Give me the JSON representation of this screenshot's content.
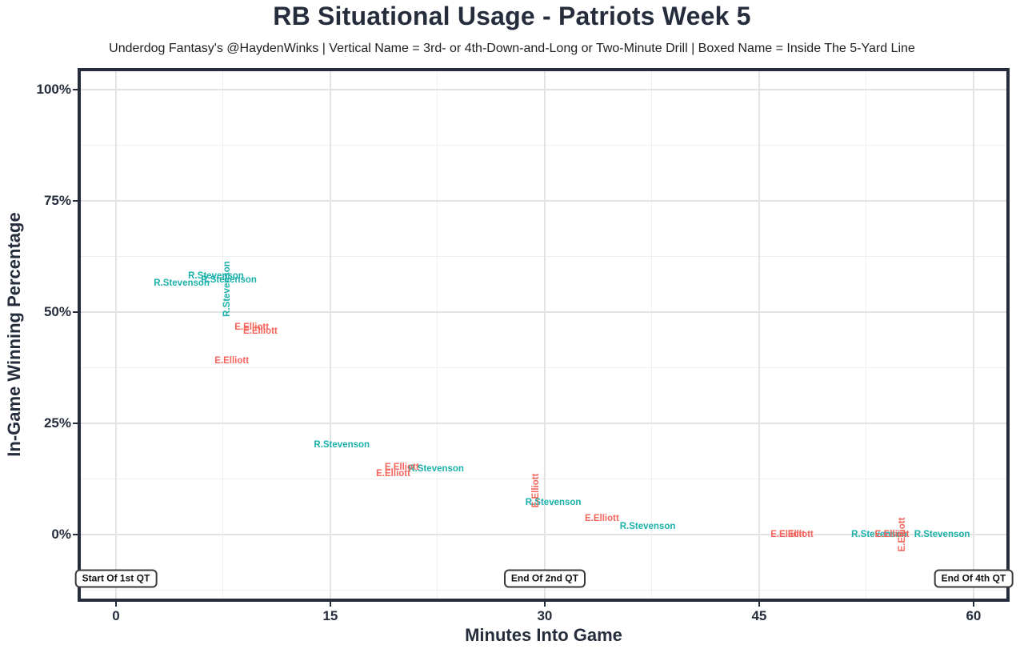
{
  "chart_data": {
    "type": "scatter",
    "point_style": "text-labels-only",
    "title": "RB Situational Usage - Patriots Week 5",
    "subtitle": "Underdog Fantasy's @HaydenWinks | Vertical Name = 3rd- or 4th-Down-and-Long or Two-Minute Drill | Boxed Name = Inside The 5-Yard Line",
    "xlabel": "Minutes Into Game",
    "ylabel": "In-Game Winning Percentage",
    "xlim": [
      -2.46,
      62.3
    ],
    "ylim": [
      -14.4,
      104.1
    ],
    "grid": true,
    "legend": "none",
    "x_ticks": [
      {
        "value": 0,
        "label": "0"
      },
      {
        "value": 15,
        "label": "15"
      },
      {
        "value": 30,
        "label": "30"
      },
      {
        "value": 45,
        "label": "45"
      },
      {
        "value": 60,
        "label": "60"
      }
    ],
    "y_ticks": [
      {
        "value": 0,
        "label": "0%"
      },
      {
        "value": 25,
        "label": "25%"
      },
      {
        "value": 50,
        "label": "50%"
      },
      {
        "value": 75,
        "label": "75%"
      },
      {
        "value": 100,
        "label": "100%"
      }
    ],
    "x_minor_gridlines": [
      7.5,
      22.5,
      37.5,
      52.5
    ],
    "y_minor_gridlines": [
      -12.5,
      12.5,
      37.5,
      62.5,
      87.5
    ],
    "series": [
      {
        "name": "R.Stevenson",
        "color": "#1bb1aa",
        "points": [
          {
            "x": 4.6,
            "y": 56.5
          },
          {
            "x": 7.0,
            "y": 58.1
          },
          {
            "x": 7.9,
            "y": 57.2
          },
          {
            "x": 7.8,
            "y": 55.2,
            "vertical": true
          },
          {
            "x": 15.8,
            "y": 20.1
          },
          {
            "x": 22.4,
            "y": 14.7
          },
          {
            "x": 30.6,
            "y": 7.2
          },
          {
            "x": 37.2,
            "y": 1.8
          },
          {
            "x": 53.4,
            "y": 0.0
          },
          {
            "x": 57.8,
            "y": 0.0
          }
        ]
      },
      {
        "name": "E.Elliott",
        "color": "#f4655c",
        "points": [
          {
            "x": 9.5,
            "y": 46.6
          },
          {
            "x": 10.1,
            "y": 45.7
          },
          {
            "x": 8.1,
            "y": 39.0
          },
          {
            "x": 20.0,
            "y": 15.1
          },
          {
            "x": 19.4,
            "y": 13.7
          },
          {
            "x": 29.4,
            "y": 9.9,
            "vertical": true
          },
          {
            "x": 34.0,
            "y": 3.6
          },
          {
            "x": 47.0,
            "y": 0.0
          },
          {
            "x": 47.6,
            "y": 0.0
          },
          {
            "x": 54.3,
            "y": 0.0
          },
          {
            "x": 55.0,
            "y": 0.0,
            "vertical": true
          }
        ]
      }
    ],
    "annotations": [
      {
        "label": "Start Of 1st QT",
        "x": 0,
        "y": -9.9
      },
      {
        "label": "End Of 2nd QT",
        "x": 30,
        "y": -9.9
      },
      {
        "label": "End Of 4th QT",
        "x": 60,
        "y": -9.9
      }
    ],
    "colors": {
      "r_stevenson": "#1bb1aa",
      "e_elliott": "#f4655c",
      "axis_text": "#252d3d",
      "panel_border": "#252d3d",
      "grid_major": "#e3e3e3",
      "grid_minor": "#efefef",
      "background": "#ffffff"
    }
  }
}
